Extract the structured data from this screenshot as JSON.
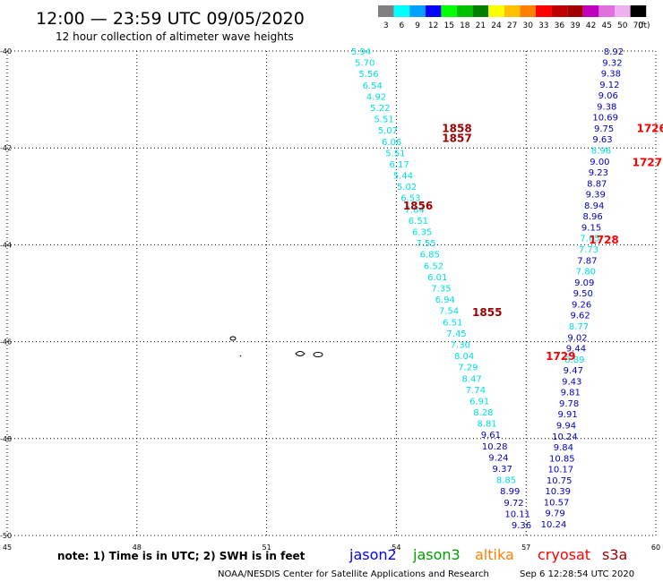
{
  "header": {
    "title": "12:00 — 23:59 UTC 09/05/2020",
    "subtitle": "12 hour collection of altimeter wave heights"
  },
  "legend": {
    "unit": "(ft)",
    "bins": [
      {
        "label": "3",
        "color": "#808080"
      },
      {
        "label": "6",
        "color": "#00ffff"
      },
      {
        "label": "9",
        "color": "#00a0ff"
      },
      {
        "label": "12",
        "color": "#0000ff"
      },
      {
        "label": "15",
        "color": "#00ff00"
      },
      {
        "label": "18",
        "color": "#00c000"
      },
      {
        "label": "21",
        "color": "#008000"
      },
      {
        "label": "24",
        "color": "#ffff00"
      },
      {
        "label": "27",
        "color": "#ffc000"
      },
      {
        "label": "30",
        "color": "#ff8000"
      },
      {
        "label": "33",
        "color": "#ff0000"
      },
      {
        "label": "36",
        "color": "#c00000"
      },
      {
        "label": "39",
        "color": "#a00000"
      },
      {
        "label": "42",
        "color": "#c000c0"
      },
      {
        "label": "45",
        "color": "#e070e0"
      },
      {
        "label": "50",
        "color": "#f0b0f0"
      },
      {
        "label": "70",
        "color": "#000000"
      }
    ]
  },
  "footer": {
    "note": "note:  1) Time is in UTC;  2) SWH is in feet",
    "satellites": [
      {
        "name": "jason2",
        "color": "#0000ff"
      },
      {
        "name": "jason3",
        "color": "#00a000"
      },
      {
        "name": "altika",
        "color": "#ff8000"
      },
      {
        "name": "cryosat",
        "color": "#ff0000"
      },
      {
        "name": "s3a",
        "color": "#a00000"
      }
    ],
    "credit": "NOAA/NESDIS Center for Satellite Applications and Research",
    "timestamp": "Sep  6 12:28:54 UTC 2020"
  },
  "chart_data": {
    "type": "scatter",
    "title": "12:00 — 23:59 UTC 09/05/2020",
    "xlim": [
      45,
      60
    ],
    "ylim": [
      -50,
      -40
    ],
    "x_ticks": [
      "45",
      "48",
      "51",
      "54",
      "57",
      "60"
    ],
    "y_ticks": [
      "-40",
      "-42",
      "-44",
      "-46",
      "-48",
      "-50"
    ],
    "grid": true,
    "track_a": {
      "labels": [
        {
          "lon": 55.4,
          "lat": -41.6,
          "text": "1858",
          "color": "#a00000"
        },
        {
          "lon": 55.4,
          "lat": -41.8,
          "text": "1857",
          "color": "#a00000"
        },
        {
          "lon": 54.5,
          "lat": -43.2,
          "text": "1856",
          "color": "#a00000"
        },
        {
          "lon": 56.1,
          "lat": -45.4,
          "text": "1855",
          "color": "#a00000"
        }
      ],
      "values": [
        "5.94",
        "5.70",
        "5.56",
        "6.54",
        "4.92",
        "5.22",
        "5.51",
        "5.07",
        "6.06",
        "5.51",
        "6.17",
        "5.44",
        "5.02",
        "6.53",
        "7.84",
        "6.51",
        "6.35",
        "7.55",
        "6.85",
        "6.52",
        "6.01",
        "7.35",
        "6.94",
        "7.54",
        "6.51",
        "7.45",
        "7.30",
        "8.04",
        "7.29",
        "8.47",
        "7.74",
        "6.91",
        "8.28",
        "8.81",
        "9.61",
        "10.28",
        "9.24",
        "9.37",
        "8.85",
        "8.99",
        "9.72",
        "10.11",
        "9.36"
      ],
      "colors": [
        "#00e0e0",
        "#00e0e0",
        "#00e0e0",
        "#00e0e0",
        "#00e0e0",
        "#00e0e0",
        "#00e0e0",
        "#00e0e0",
        "#00e0e0",
        "#00e0e0",
        "#00e0e0",
        "#00e0e0",
        "#00e0e0",
        "#00e0e0",
        "#00e0e0",
        "#00e0e0",
        "#00e0e0",
        "#00e0e0",
        "#00e0e0",
        "#00e0e0",
        "#00e0e0",
        "#00e0e0",
        "#00e0e0",
        "#00e0e0",
        "#00e0e0",
        "#00e0e0",
        "#00e0e0",
        "#00e0e0",
        "#00e0e0",
        "#00e0e0",
        "#00e0e0",
        "#00e0e0",
        "#00e0e0",
        "#00e0e0",
        "#0000c0",
        "#0000c0",
        "#0000c0",
        "#0000c0",
        "#00e0e0",
        "#0000c0",
        "#0000c0",
        "#0000c0",
        "#0000c0"
      ]
    },
    "track_b": {
      "labels": [
        {
          "lon": 59.9,
          "lat": -41.6,
          "text": "1726",
          "color": "#ff0000"
        },
        {
          "lon": 59.8,
          "lat": -42.3,
          "text": "1727",
          "color": "#ff0000"
        },
        {
          "lon": 58.8,
          "lat": -43.9,
          "text": "1728",
          "color": "#ff0000"
        },
        {
          "lon": 57.8,
          "lat": -46.3,
          "text": "1729",
          "color": "#ff0000"
        }
      ],
      "values": [
        "8.92",
        "9.32",
        "9.38",
        "9.12",
        "9.06",
        "9.38",
        "10.69",
        "9.75",
        "9.63",
        "8.96",
        "9.00",
        "9.23",
        "8.87",
        "9.39",
        "8.94",
        "8.96",
        "9.15",
        "7.65",
        "7.73",
        "7.87",
        "7.80",
        "9.09",
        "9.50",
        "9.26",
        "9.62",
        "8.77",
        "9.02",
        "9.44",
        "8.89",
        "9.47",
        "9.43",
        "9.81",
        "9.78",
        "9.91",
        "9.94",
        "10.24",
        "9.84",
        "10.85",
        "10.17",
        "10.75",
        "10.39",
        "10.57",
        "9.79",
        "10.24"
      ],
      "colors": [
        "#0000c0",
        "#0000c0",
        "#0000c0",
        "#0000c0",
        "#0000c0",
        "#0000c0",
        "#0000c0",
        "#0000c0",
        "#0000c0",
        "#00e0e0",
        "#0000c0",
        "#0000c0",
        "#0000c0",
        "#0000c0",
        "#0000c0",
        "#0000c0",
        "#0000c0",
        "#00e0e0",
        "#00e0e0",
        "#0000c0",
        "#00e0e0",
        "#0000c0",
        "#0000c0",
        "#0000c0",
        "#0000c0",
        "#00e0e0",
        "#0000c0",
        "#0000c0",
        "#00e0e0",
        "#0000c0",
        "#0000c0",
        "#0000c0",
        "#0000c0",
        "#0000c0",
        "#0000c0",
        "#0000c0",
        "#0000c0",
        "#0000c0",
        "#0000c0",
        "#0000c0",
        "#0000c0",
        "#0000c0",
        "#0000c0",
        "#0000c0"
      ]
    }
  }
}
